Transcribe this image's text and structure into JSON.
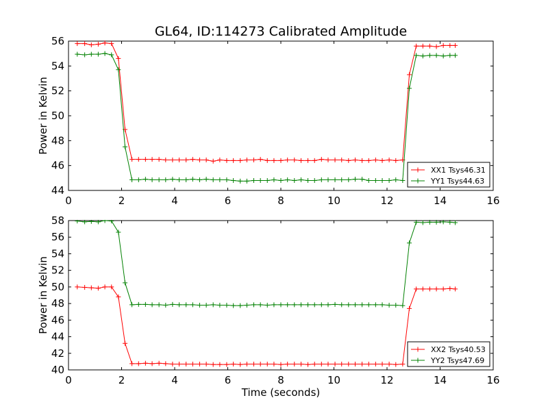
{
  "figure": {
    "title": "GL64, ID:114273 Calibrated Amplitude",
    "xlabel": "Time (seconds)"
  },
  "chart_data": [
    {
      "type": "line",
      "title": "GL64, ID:114273 Calibrated Amplitude",
      "xlabel": "",
      "ylabel": "Power in Kelvin",
      "xlim": [
        0,
        16
      ],
      "ylim": [
        44,
        56
      ],
      "xticks": [
        0,
        2,
        4,
        6,
        8,
        10,
        12,
        14,
        16
      ],
      "yticks": [
        44,
        46,
        48,
        50,
        52,
        54,
        56
      ],
      "grid": false,
      "legend_position": "bottom-right",
      "series": [
        {
          "name": "XX1 Tsys46.31",
          "color": "#ff0000",
          "marker": "plus",
          "x": [
            0.33,
            0.61,
            0.86,
            1.12,
            1.37,
            1.62,
            1.88,
            2.13,
            2.39,
            2.64,
            2.9,
            3.15,
            3.41,
            3.66,
            3.92,
            4.17,
            4.43,
            4.68,
            4.94,
            5.19,
            5.45,
            5.7,
            5.96,
            6.21,
            6.47,
            6.72,
            6.98,
            7.23,
            7.49,
            7.74,
            8.0,
            8.25,
            8.51,
            8.76,
            9.02,
            9.27,
            9.53,
            9.78,
            10.04,
            10.29,
            10.55,
            10.8,
            11.06,
            11.31,
            11.57,
            11.82,
            12.08,
            12.33,
            12.59,
            12.84,
            13.1,
            13.35,
            13.61,
            13.86,
            14.12,
            14.37,
            14.57
          ],
          "y": [
            55.8,
            55.8,
            55.7,
            55.75,
            55.85,
            55.8,
            54.6,
            48.9,
            46.5,
            46.5,
            46.5,
            46.5,
            46.5,
            46.45,
            46.45,
            46.45,
            46.45,
            46.5,
            46.45,
            46.45,
            46.35,
            46.45,
            46.4,
            46.4,
            46.4,
            46.45,
            46.45,
            46.5,
            46.4,
            46.4,
            46.4,
            46.45,
            46.45,
            46.4,
            46.4,
            46.4,
            46.5,
            46.45,
            46.45,
            46.45,
            46.4,
            46.45,
            46.4,
            46.4,
            46.45,
            46.4,
            46.45,
            46.4,
            46.45,
            53.3,
            55.6,
            55.6,
            55.6,
            55.55,
            55.65,
            55.65,
            55.65
          ]
        },
        {
          "name": "YY1 Tsys44.63",
          "color": "#008000",
          "marker": "plus",
          "x": [
            0.33,
            0.61,
            0.86,
            1.12,
            1.37,
            1.62,
            1.88,
            2.13,
            2.39,
            2.64,
            2.9,
            3.15,
            3.41,
            3.66,
            3.92,
            4.17,
            4.43,
            4.68,
            4.94,
            5.19,
            5.45,
            5.7,
            5.96,
            6.21,
            6.47,
            6.72,
            6.98,
            7.23,
            7.49,
            7.74,
            8.0,
            8.25,
            8.51,
            8.76,
            9.02,
            9.27,
            9.53,
            9.78,
            10.04,
            10.29,
            10.55,
            10.8,
            11.06,
            11.31,
            11.57,
            11.82,
            12.08,
            12.33,
            12.59,
            12.84,
            13.1,
            13.35,
            13.61,
            13.86,
            14.12,
            14.37,
            14.57
          ],
          "y": [
            54.95,
            54.9,
            54.95,
            54.95,
            55.0,
            54.9,
            53.7,
            47.5,
            44.85,
            44.85,
            44.9,
            44.85,
            44.85,
            44.85,
            44.9,
            44.85,
            44.85,
            44.9,
            44.85,
            44.9,
            44.85,
            44.85,
            44.85,
            44.8,
            44.75,
            44.75,
            44.8,
            44.8,
            44.8,
            44.85,
            44.8,
            44.85,
            44.8,
            44.85,
            44.8,
            44.8,
            44.85,
            44.85,
            44.85,
            44.85,
            44.85,
            44.9,
            44.9,
            44.8,
            44.8,
            44.8,
            44.8,
            44.85,
            44.8,
            52.2,
            54.85,
            54.8,
            54.85,
            54.85,
            54.8,
            54.85,
            54.85
          ]
        }
      ]
    },
    {
      "type": "line",
      "title": "",
      "xlabel": "Time (seconds)",
      "ylabel": "Power in Kelvin",
      "xlim": [
        0,
        16
      ],
      "ylim": [
        40,
        58
      ],
      "xticks": [
        0,
        2,
        4,
        6,
        8,
        10,
        12,
        14,
        16
      ],
      "yticks": [
        40,
        42,
        44,
        46,
        48,
        50,
        52,
        54,
        56,
        58
      ],
      "grid": false,
      "legend_position": "bottom-right",
      "series": [
        {
          "name": "XX2 Tsys40.53",
          "color": "#ff0000",
          "marker": "plus",
          "x": [
            0.33,
            0.61,
            0.86,
            1.12,
            1.37,
            1.62,
            1.88,
            2.13,
            2.39,
            2.64,
            2.9,
            3.15,
            3.41,
            3.66,
            3.92,
            4.17,
            4.43,
            4.68,
            4.94,
            5.19,
            5.45,
            5.7,
            5.96,
            6.21,
            6.47,
            6.72,
            6.98,
            7.23,
            7.49,
            7.74,
            8.0,
            8.25,
            8.51,
            8.76,
            9.02,
            9.27,
            9.53,
            9.78,
            10.04,
            10.29,
            10.55,
            10.8,
            11.06,
            11.31,
            11.57,
            11.82,
            12.08,
            12.33,
            12.59,
            12.84,
            13.1,
            13.35,
            13.61,
            13.86,
            14.12,
            14.37,
            14.57
          ],
          "y": [
            50.0,
            49.95,
            49.9,
            49.85,
            50.0,
            50.0,
            48.8,
            43.2,
            40.75,
            40.75,
            40.8,
            40.75,
            40.8,
            40.75,
            40.7,
            40.7,
            40.7,
            40.7,
            40.7,
            40.7,
            40.65,
            40.65,
            40.65,
            40.7,
            40.65,
            40.7,
            40.7,
            40.7,
            40.7,
            40.7,
            40.65,
            40.7,
            40.7,
            40.7,
            40.65,
            40.7,
            40.7,
            40.7,
            40.7,
            40.7,
            40.7,
            40.7,
            40.7,
            40.7,
            40.7,
            40.7,
            40.7,
            40.65,
            40.7,
            47.4,
            49.75,
            49.75,
            49.75,
            49.75,
            49.75,
            49.8,
            49.75
          ]
        },
        {
          "name": "YY2 Tsys47.69",
          "color": "#008000",
          "marker": "plus",
          "x": [
            0.33,
            0.61,
            0.86,
            1.12,
            1.37,
            1.62,
            1.88,
            2.13,
            2.39,
            2.64,
            2.9,
            3.15,
            3.41,
            3.66,
            3.92,
            4.17,
            4.43,
            4.68,
            4.94,
            5.19,
            5.45,
            5.7,
            5.96,
            6.21,
            6.47,
            6.72,
            6.98,
            7.23,
            7.49,
            7.74,
            8.0,
            8.25,
            8.51,
            8.76,
            9.02,
            9.27,
            9.53,
            9.78,
            10.04,
            10.29,
            10.55,
            10.8,
            11.06,
            11.31,
            11.57,
            11.82,
            12.08,
            12.33,
            12.59,
            12.84,
            13.1,
            13.35,
            13.61,
            13.86,
            14.12,
            14.37,
            14.57
          ],
          "y": [
            57.95,
            57.85,
            57.9,
            57.85,
            58.0,
            57.95,
            56.6,
            50.5,
            47.85,
            47.9,
            47.9,
            47.85,
            47.85,
            47.8,
            47.9,
            47.85,
            47.85,
            47.85,
            47.8,
            47.8,
            47.85,
            47.8,
            47.8,
            47.75,
            47.75,
            47.8,
            47.85,
            47.85,
            47.8,
            47.85,
            47.85,
            47.85,
            47.85,
            47.85,
            47.85,
            47.85,
            47.85,
            47.85,
            47.9,
            47.85,
            47.85,
            47.85,
            47.85,
            47.85,
            47.85,
            47.85,
            47.8,
            47.8,
            47.75,
            55.3,
            57.8,
            57.75,
            57.8,
            57.8,
            57.85,
            57.8,
            57.75
          ]
        }
      ]
    }
  ]
}
